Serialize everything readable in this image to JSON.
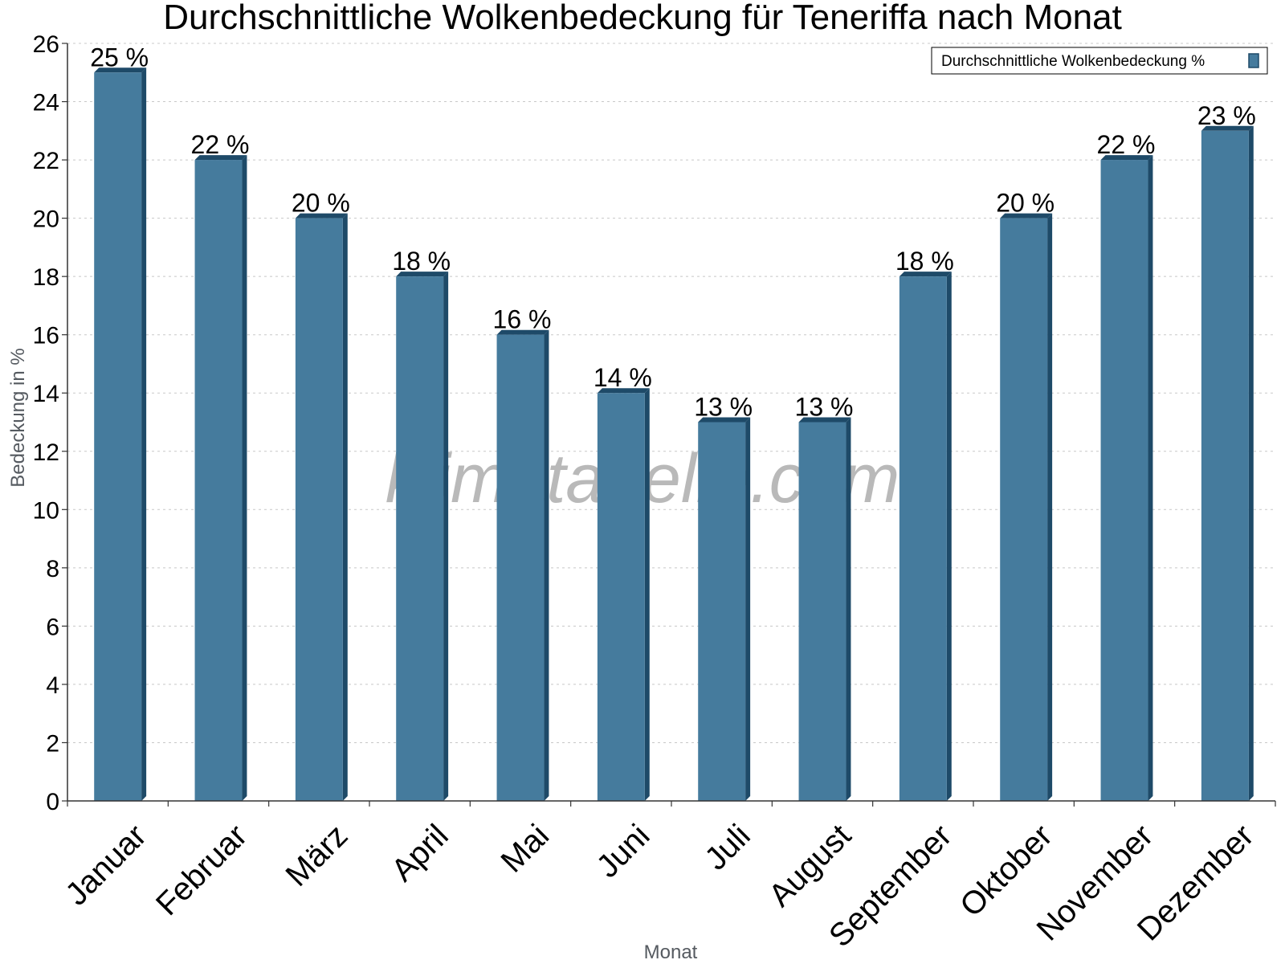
{
  "chart_data": {
    "type": "bar",
    "title": "Durchschnittliche Wolkenbedeckung für Teneriffa nach Monat",
    "xlabel": "Monat",
    "ylabel": "Bedeckung in %",
    "categories": [
      "Januar",
      "Februar",
      "März",
      "April",
      "Mai",
      "Juni",
      "Juli",
      "August",
      "September",
      "Oktober",
      "November",
      "Dezember"
    ],
    "series": [
      {
        "name": "Durchschnittliche Wolkenbedeckung %",
        "values": [
          25,
          22,
          20,
          18,
          16,
          14,
          13,
          13,
          18,
          20,
          22,
          23
        ],
        "labels": [
          "25 %",
          "22 %",
          "20 %",
          "18 %",
          "16 %",
          "14 %",
          "13 %",
          "13 %",
          "18 %",
          "20 %",
          "22 %",
          "23 %"
        ]
      }
    ],
    "ylim": [
      0,
      26
    ],
    "yticks": [
      "0",
      "2",
      "4",
      "6",
      "8",
      "10",
      "12",
      "14",
      "16",
      "18",
      "20",
      "22",
      "24",
      "26"
    ],
    "grid": true,
    "legend_position": "top-right",
    "colors": {
      "bar": "#457b9d",
      "bar_side": "#1e4a68",
      "bar_top": "#1e4a68"
    }
  },
  "watermark": "klimatabelle.com"
}
